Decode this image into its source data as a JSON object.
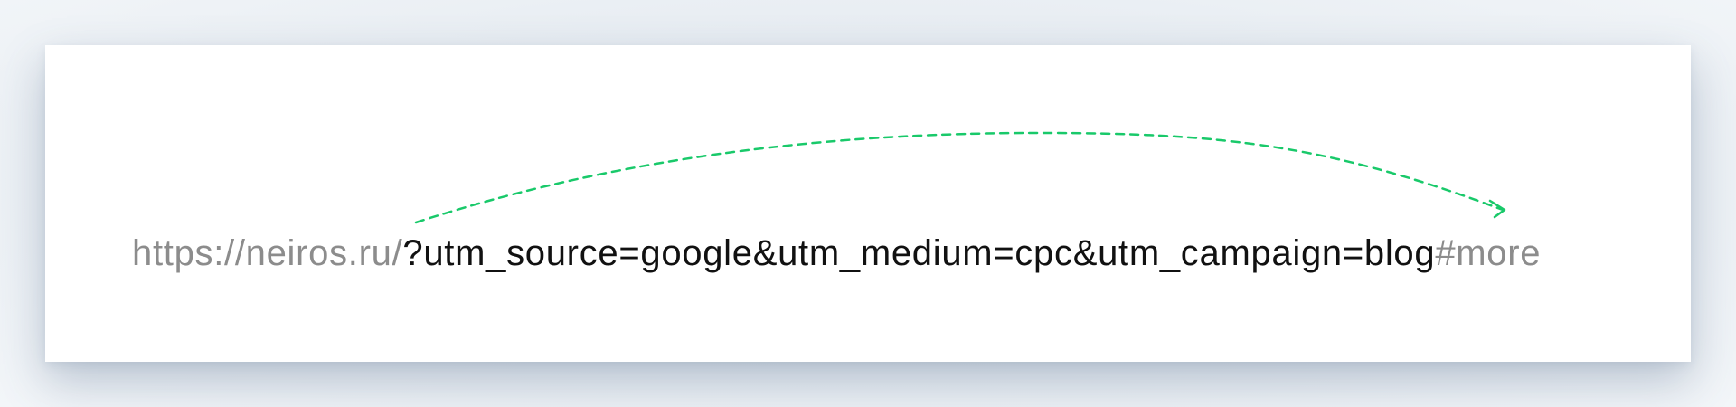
{
  "url": {
    "base": "https://neiros.ru/",
    "params": "?utm_source=google&utm_medium=cpc&utm_campaign=blog",
    "anchor": "#more"
  },
  "colors": {
    "muted_text": "#8c8c8c",
    "main_text": "#111111",
    "arrow": "#19c96a",
    "card": "#ffffff"
  },
  "arrow": {
    "style": "dashed",
    "direction": "from-base-to-anchor",
    "icon": "curved-arrow-icon"
  }
}
